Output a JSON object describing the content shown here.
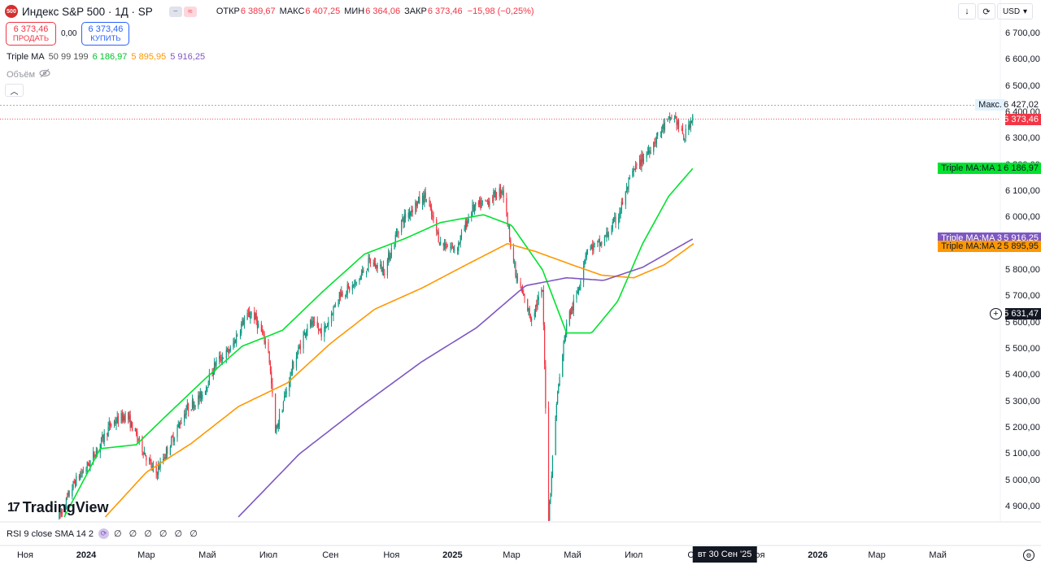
{
  "header": {
    "logo_text": "500",
    "symbol_title": "Индекс S&P 500 · 1Д · SP",
    "open_label": "ОТКР",
    "open_value": "6 389,67",
    "high_label": "МАКС",
    "high_value": "6 407,25",
    "low_label": "МИН",
    "low_value": "6 364,06",
    "close_label": "ЗАКР",
    "close_value": "6 373,46",
    "change": "−15,98 (−0,25%)"
  },
  "trade": {
    "sell_price": "6 373,46",
    "sell_label": "ПРОДАТЬ",
    "spread": "0,00",
    "buy_price": "6 373,46",
    "buy_label": "КУПИТЬ"
  },
  "indicator": {
    "name": "Triple MA",
    "params": "50 99 199",
    "ma1_value": "6 186,97",
    "ma2_value": "5 895,95",
    "ma3_value": "5 916,25",
    "ma1_color": "#00e32e",
    "ma2_color": "#ff9800",
    "ma3_color": "#7e57c2"
  },
  "volume_label": "Объём",
  "toolbar": {
    "currency": "USD"
  },
  "price_labels": {
    "max_tag": "Макс.",
    "max_value": "6 427,02",
    "last_value": "6 373,46",
    "ma1_tag": "Triple MA:MA 1",
    "ma1_value": "6 186,97",
    "ma3_tag": "Triple MA:MA 3",
    "ma3_value": "5 916,25",
    "ma2_tag": "Triple MA:MA 2",
    "ma2_value": "5 895,95",
    "crosshair_value": "5 631,47"
  },
  "rsi": {
    "label": "RSI 9 close SMA 14 2",
    "values": "∅ ∅ ∅ ∅ ∅ ∅"
  },
  "branding": "TradingView",
  "time_cursor": "вт 30 Сен '25",
  "chart_data": {
    "type": "candlestick",
    "y_ticks": [
      "6 700,00",
      "6 600,00",
      "6 500,00",
      "6 400,00",
      "6 300,00",
      "6 200,00",
      "6 100,00",
      "6 000,00",
      "5 900,00",
      "5 800,00",
      "5 700,00",
      "5 600,00",
      "5 500,00",
      "5 400,00",
      "5 300,00",
      "5 200,00",
      "5 100,00",
      "5 000,00",
      "4 900,00"
    ],
    "ylim": [
      4860,
      6760
    ],
    "x_ticks": [
      {
        "label": "Ноя",
        "date": "2023-11-01",
        "bold": false
      },
      {
        "label": "2024",
        "date": "2024-01-01",
        "bold": true
      },
      {
        "label": "Мар",
        "date": "2024-03-01",
        "bold": false
      },
      {
        "label": "Май",
        "date": "2024-05-01",
        "bold": false
      },
      {
        "label": "Июл",
        "date": "2024-07-01",
        "bold": false
      },
      {
        "label": "Сен",
        "date": "2024-09-01",
        "bold": false
      },
      {
        "label": "Ноя",
        "date": "2024-11-01",
        "bold": false
      },
      {
        "label": "2025",
        "date": "2025-01-01",
        "bold": true
      },
      {
        "label": "Мар",
        "date": "2025-03-01",
        "bold": false
      },
      {
        "label": "Май",
        "date": "2025-05-01",
        "bold": false
      },
      {
        "label": "Июл",
        "date": "2025-07-01",
        "bold": false
      },
      {
        "label": "Сен",
        "date": "2025-09-01",
        "bold": false
      },
      {
        "label": "Ноя",
        "date": "2025-11-01",
        "bold": false
      },
      {
        "label": "2026",
        "date": "2026-01-01",
        "bold": true
      },
      {
        "label": "Мар",
        "date": "2026-03-01",
        "bold": false
      },
      {
        "label": "Май",
        "date": "2026-05-01",
        "bold": false
      }
    ],
    "price_anchors": [
      [
        "2023-12-05",
        4860
      ],
      [
        "2023-12-20",
        4990
      ],
      [
        "2024-01-05",
        5070
      ],
      [
        "2024-01-25",
        5210
      ],
      [
        "2024-02-10",
        5250
      ],
      [
        "2024-02-25",
        5130
      ],
      [
        "2024-03-10",
        5020
      ],
      [
        "2024-03-25",
        5140
      ],
      [
        "2024-04-10",
        5270
      ],
      [
        "2024-04-25",
        5320
      ],
      [
        "2024-05-10",
        5450
      ],
      [
        "2024-05-25",
        5500
      ],
      [
        "2024-06-05",
        5600
      ],
      [
        "2024-06-15",
        5640
      ],
      [
        "2024-07-01",
        5500
      ],
      [
        "2024-07-08",
        5180
      ],
      [
        "2024-07-25",
        5430
      ],
      [
        "2024-08-10",
        5600
      ],
      [
        "2024-08-25",
        5560
      ],
      [
        "2024-09-10",
        5710
      ],
      [
        "2024-09-25",
        5740
      ],
      [
        "2024-10-10",
        5830
      ],
      [
        "2024-10-25",
        5800
      ],
      [
        "2024-11-10",
        5980
      ],
      [
        "2024-11-25",
        6050
      ],
      [
        "2024-12-05",
        6080
      ],
      [
        "2024-12-20",
        5900
      ],
      [
        "2025-01-05",
        5880
      ],
      [
        "2025-01-20",
        6030
      ],
      [
        "2025-02-05",
        6060
      ],
      [
        "2025-02-20",
        6110
      ],
      [
        "2025-03-05",
        5780
      ],
      [
        "2025-03-20",
        5620
      ],
      [
        "2025-04-01",
        5720
      ],
      [
        "2025-04-07",
        4860
      ],
      [
        "2025-04-15",
        5300
      ],
      [
        "2025-04-25",
        5600
      ],
      [
        "2025-05-05",
        5700
      ],
      [
        "2025-05-15",
        5880
      ],
      [
        "2025-05-30",
        5900
      ],
      [
        "2025-06-15",
        6000
      ],
      [
        "2025-06-30",
        6170
      ],
      [
        "2025-07-15",
        6250
      ],
      [
        "2025-07-30",
        6340
      ],
      [
        "2025-08-10",
        6390
      ],
      [
        "2025-08-20",
        6300
      ],
      [
        "2025-08-30",
        6400
      ]
    ],
    "ma_series": [
      {
        "name": "MA 1",
        "period": 50,
        "color": "#00e32e",
        "last": 6186.97,
        "points": [
          [
            "2023-12-10",
            4860
          ],
          [
            "2024-01-15",
            5120
          ],
          [
            "2024-02-20",
            5135
          ],
          [
            "2024-03-25",
            5260
          ],
          [
            "2024-04-30",
            5390
          ],
          [
            "2024-06-05",
            5510
          ],
          [
            "2024-07-15",
            5570
          ],
          [
            "2024-08-25",
            5720
          ],
          [
            "2024-10-05",
            5860
          ],
          [
            "2024-11-15",
            5920
          ],
          [
            "2024-12-20",
            5980
          ],
          [
            "2025-02-01",
            6010
          ],
          [
            "2025-03-01",
            5970
          ],
          [
            "2025-04-01",
            5800
          ],
          [
            "2025-04-25",
            5560
          ],
          [
            "2025-05-20",
            5560
          ],
          [
            "2025-06-15",
            5680
          ],
          [
            "2025-07-10",
            5900
          ],
          [
            "2025-08-05",
            6080
          ],
          [
            "2025-08-30",
            6190
          ]
        ]
      },
      {
        "name": "MA 2",
        "period": 99,
        "color": "#ff9800",
        "last": 5895.95,
        "points": [
          [
            "2024-01-20",
            4860
          ],
          [
            "2024-03-01",
            5030
          ],
          [
            "2024-04-15",
            5140
          ],
          [
            "2024-06-01",
            5280
          ],
          [
            "2024-07-20",
            5370
          ],
          [
            "2024-09-01",
            5520
          ],
          [
            "2024-10-15",
            5650
          ],
          [
            "2024-12-01",
            5730
          ],
          [
            "2025-01-15",
            5820
          ],
          [
            "2025-02-25",
            5900
          ],
          [
            "2025-03-25",
            5870
          ],
          [
            "2025-04-30",
            5820
          ],
          [
            "2025-05-30",
            5780
          ],
          [
            "2025-07-01",
            5770
          ],
          [
            "2025-08-01",
            5820
          ],
          [
            "2025-08-30",
            5900
          ]
        ]
      },
      {
        "name": "MA 3",
        "period": 199,
        "color": "#7e57c2",
        "last": 5916.25,
        "points": [
          [
            "2024-06-01",
            4860
          ],
          [
            "2024-08-01",
            5100
          ],
          [
            "2024-10-01",
            5280
          ],
          [
            "2024-12-01",
            5450
          ],
          [
            "2025-01-25",
            5580
          ],
          [
            "2025-03-15",
            5740
          ],
          [
            "2025-04-25",
            5770
          ],
          [
            "2025-06-01",
            5760
          ],
          [
            "2025-07-10",
            5810
          ],
          [
            "2025-08-30",
            5920
          ]
        ]
      }
    ],
    "max_line": 6427.02,
    "last_price": 6373.46,
    "crosshair_price": 5631.47
  }
}
